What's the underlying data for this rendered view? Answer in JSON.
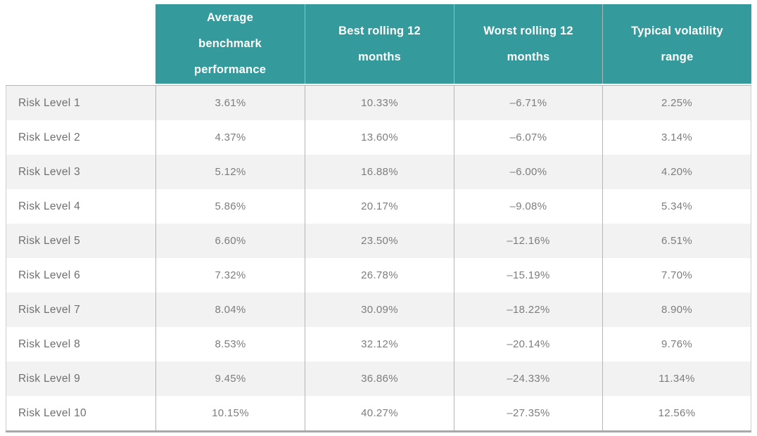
{
  "colors": {
    "header_bg": "#359A9B",
    "header_text": "#FFFFFF",
    "header_divider": "#A9B9B9",
    "row_stripe": "#F2F2F2",
    "row_white": "#FFFFFF",
    "label_text": "#6F6F6F",
    "body_text": "#7D7D7D",
    "border": "#B5B5B5",
    "outer_border": "#CFCFCF",
    "bottom_border": "#A9A9A9"
  },
  "table": {
    "corner_label": "",
    "columns": [
      "Average benchmark performance",
      "Best rolling 12 months",
      "Worst rolling 12 months",
      "Typical volatility range"
    ],
    "rows": [
      {
        "label": "Risk Level 1",
        "values": [
          "3.61%",
          "10.33%",
          "–6.71%",
          "2.25%"
        ]
      },
      {
        "label": "Risk Level 2",
        "values": [
          "4.37%",
          "13.60%",
          "–6.07%",
          "3.14%"
        ]
      },
      {
        "label": "Risk Level 3",
        "values": [
          "5.12%",
          "16.88%",
          "–6.00%",
          "4.20%"
        ]
      },
      {
        "label": "Risk Level 4",
        "values": [
          "5.86%",
          "20.17%",
          "–9.08%",
          "5.34%"
        ]
      },
      {
        "label": "Risk Level 5",
        "values": [
          "6.60%",
          "23.50%",
          "–12.16%",
          "6.51%"
        ]
      },
      {
        "label": "Risk Level 6",
        "values": [
          "7.32%",
          "26.78%",
          "–15.19%",
          "7.70%"
        ]
      },
      {
        "label": "Risk Level 7",
        "values": [
          "8.04%",
          "30.09%",
          "–18.22%",
          "8.90%"
        ]
      },
      {
        "label": "Risk Level 8",
        "values": [
          "8.53%",
          "32.12%",
          "–20.14%",
          "9.76%"
        ]
      },
      {
        "label": "Risk Level 9",
        "values": [
          "9.45%",
          "36.86%",
          "–24.33%",
          "11.34%"
        ]
      },
      {
        "label": "Risk Level 10",
        "values": [
          "10.15%",
          "40.27%",
          "–27.35%",
          "12.56%"
        ]
      }
    ]
  },
  "chart_data": {
    "type": "table",
    "title": "",
    "columns": [
      "",
      "Average benchmark performance",
      "Best rolling 12 months",
      "Worst rolling 12 months",
      "Typical volatility range"
    ],
    "rows": [
      [
        "Risk Level 1",
        "3.61%",
        "10.33%",
        "–6.71%",
        "2.25%"
      ],
      [
        "Risk Level 2",
        "4.37%",
        "13.60%",
        "–6.07%",
        "3.14%"
      ],
      [
        "Risk Level 3",
        "5.12%",
        "16.88%",
        "–6.00%",
        "4.20%"
      ],
      [
        "Risk Level 4",
        "5.86%",
        "20.17%",
        "–9.08%",
        "5.34%"
      ],
      [
        "Risk Level 5",
        "6.60%",
        "23.50%",
        "–12.16%",
        "6.51%"
      ],
      [
        "Risk Level 6",
        "7.32%",
        "26.78%",
        "–15.19%",
        "7.70%"
      ],
      [
        "Risk Level 7",
        "8.04%",
        "30.09%",
        "–18.22%",
        "8.90%"
      ],
      [
        "Risk Level 8",
        "8.53%",
        "32.12%",
        "–20.14%",
        "9.76%"
      ],
      [
        "Risk Level 9",
        "9.45%",
        "36.86%",
        "–24.33%",
        "11.34%"
      ],
      [
        "Risk Level 10",
        "10.15%",
        "40.27%",
        "–27.35%",
        "12.56%"
      ]
    ],
    "layout": {
      "header_background": "#359A9B",
      "row_striping": "alternating light gray / white",
      "first_column": "row labels, left-aligned",
      "data_columns": "center-aligned percentages"
    }
  }
}
